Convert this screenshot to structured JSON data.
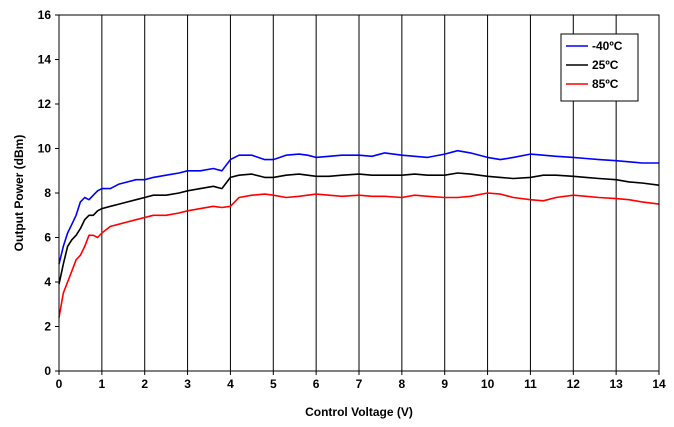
{
  "chart_data": {
    "type": "line",
    "title": "",
    "xlabel": "Control Voltage (V)",
    "ylabel": "Output Power (dBm)",
    "xlim": [
      0,
      14
    ],
    "ylim": [
      0,
      16
    ],
    "xticks": [
      "0",
      "1",
      "2",
      "3",
      "4",
      "5",
      "6",
      "7",
      "8",
      "9",
      "10",
      "11",
      "12",
      "13",
      "14"
    ],
    "yticks": [
      "0",
      "2",
      "4",
      "6",
      "8",
      "10",
      "12",
      "14",
      "16"
    ],
    "grid": {
      "vertical": true,
      "horizontal": false
    },
    "legend_position": "top-right",
    "series": [
      {
        "name": "-40ºC",
        "color": "#0000ff",
        "x": [
          0,
          0.1,
          0.2,
          0.3,
          0.4,
          0.5,
          0.6,
          0.7,
          0.8,
          0.9,
          1.0,
          1.2,
          1.4,
          1.6,
          1.8,
          2.0,
          2.2,
          2.5,
          2.8,
          3.0,
          3.3,
          3.6,
          3.8,
          4.0,
          4.2,
          4.5,
          4.8,
          5.0,
          5.3,
          5.6,
          5.8,
          6.0,
          6.3,
          6.6,
          7.0,
          7.3,
          7.6,
          8.0,
          8.3,
          8.6,
          9.0,
          9.3,
          9.6,
          10.0,
          10.3,
          10.6,
          11.0,
          11.3,
          11.6,
          12.0,
          12.3,
          12.6,
          13.0,
          13.3,
          13.6,
          14.0
        ],
        "y": [
          4.8,
          5.6,
          6.2,
          6.6,
          7.0,
          7.6,
          7.8,
          7.7,
          7.9,
          8.1,
          8.2,
          8.2,
          8.4,
          8.5,
          8.6,
          8.6,
          8.7,
          8.8,
          8.9,
          9.0,
          9.0,
          9.1,
          9.0,
          9.5,
          9.7,
          9.7,
          9.5,
          9.5,
          9.7,
          9.75,
          9.7,
          9.6,
          9.65,
          9.7,
          9.7,
          9.65,
          9.8,
          9.7,
          9.65,
          9.6,
          9.75,
          9.9,
          9.8,
          9.6,
          9.5,
          9.6,
          9.75,
          9.7,
          9.65,
          9.6,
          9.55,
          9.5,
          9.45,
          9.4,
          9.35,
          9.35
        ]
      },
      {
        "name": "25ºC",
        "color": "#000000",
        "x": [
          0,
          0.1,
          0.2,
          0.3,
          0.4,
          0.5,
          0.6,
          0.7,
          0.8,
          0.9,
          1.0,
          1.2,
          1.4,
          1.6,
          1.8,
          2.0,
          2.2,
          2.5,
          2.8,
          3.0,
          3.3,
          3.6,
          3.8,
          4.0,
          4.2,
          4.5,
          4.8,
          5.0,
          5.3,
          5.6,
          5.8,
          6.0,
          6.3,
          6.6,
          7.0,
          7.3,
          7.6,
          8.0,
          8.3,
          8.6,
          9.0,
          9.3,
          9.6,
          10.0,
          10.3,
          10.6,
          11.0,
          11.3,
          11.6,
          12.0,
          12.3,
          12.6,
          13.0,
          13.3,
          13.6,
          14.0
        ],
        "y": [
          3.9,
          4.8,
          5.6,
          5.9,
          6.1,
          6.4,
          6.8,
          7.0,
          7.0,
          7.2,
          7.3,
          7.4,
          7.5,
          7.6,
          7.7,
          7.8,
          7.9,
          7.9,
          8.0,
          8.1,
          8.2,
          8.3,
          8.2,
          8.7,
          8.8,
          8.85,
          8.7,
          8.7,
          8.8,
          8.85,
          8.8,
          8.75,
          8.75,
          8.8,
          8.85,
          8.8,
          8.8,
          8.8,
          8.85,
          8.8,
          8.8,
          8.9,
          8.85,
          8.75,
          8.7,
          8.65,
          8.7,
          8.8,
          8.8,
          8.75,
          8.7,
          8.65,
          8.6,
          8.5,
          8.45,
          8.35
        ]
      },
      {
        "name": "85ºC",
        "color": "#ff0000",
        "x": [
          0,
          0.1,
          0.2,
          0.3,
          0.4,
          0.5,
          0.6,
          0.7,
          0.8,
          0.9,
          1.0,
          1.2,
          1.4,
          1.6,
          1.8,
          2.0,
          2.2,
          2.5,
          2.8,
          3.0,
          3.3,
          3.6,
          3.8,
          4.0,
          4.2,
          4.5,
          4.8,
          5.0,
          5.3,
          5.6,
          5.8,
          6.0,
          6.3,
          6.6,
          7.0,
          7.3,
          7.6,
          8.0,
          8.3,
          8.6,
          9.0,
          9.3,
          9.6,
          10.0,
          10.3,
          10.6,
          11.0,
          11.3,
          11.6,
          12.0,
          12.3,
          12.6,
          13.0,
          13.3,
          13.6,
          14.0
        ],
        "y": [
          2.4,
          3.5,
          4.0,
          4.5,
          5.0,
          5.2,
          5.6,
          6.1,
          6.1,
          6.0,
          6.2,
          6.5,
          6.6,
          6.7,
          6.8,
          6.9,
          7.0,
          7.0,
          7.1,
          7.2,
          7.3,
          7.4,
          7.35,
          7.4,
          7.8,
          7.9,
          7.95,
          7.9,
          7.8,
          7.85,
          7.9,
          7.95,
          7.9,
          7.85,
          7.9,
          7.85,
          7.85,
          7.8,
          7.9,
          7.85,
          7.8,
          7.8,
          7.85,
          8.0,
          7.95,
          7.8,
          7.7,
          7.65,
          7.8,
          7.9,
          7.85,
          7.8,
          7.75,
          7.7,
          7.6,
          7.5
        ]
      }
    ]
  }
}
